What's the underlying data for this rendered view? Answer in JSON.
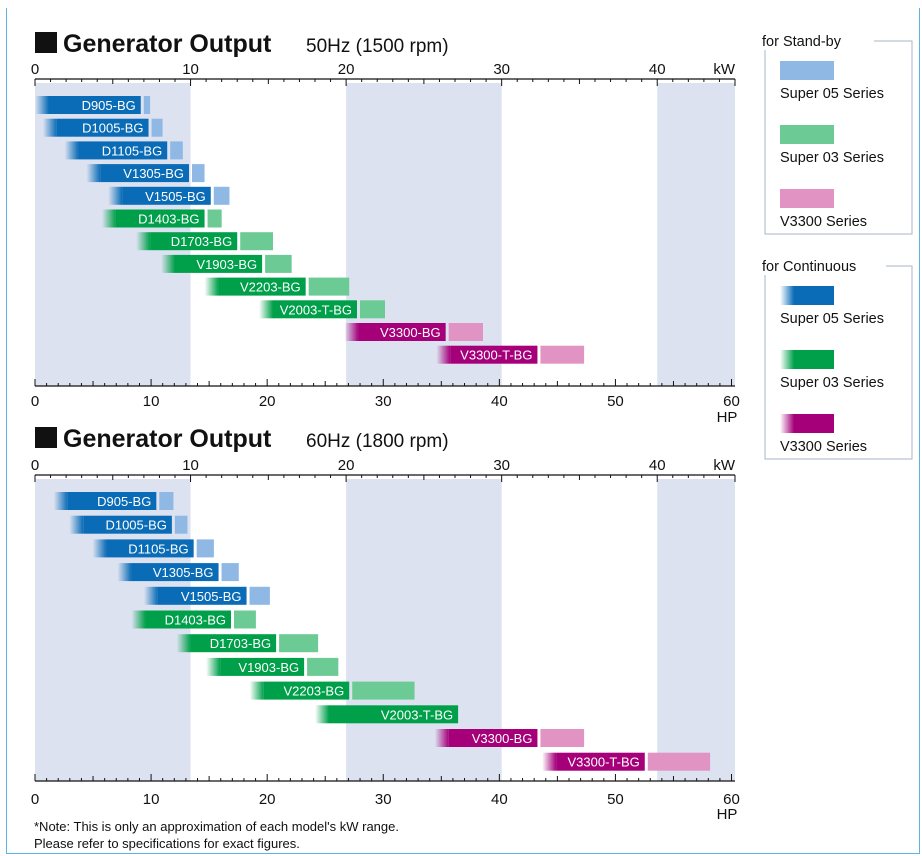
{
  "colors": {
    "band": "#dde2f1",
    "super05_continuous": "#0a6cb6",
    "super05_standby": "#8fb8e4",
    "super03_continuous": "#00a04a",
    "super03_standby": "#6ccb94",
    "v3300_continuous": "#a5007a",
    "v3300_standby": "#e194c3",
    "legend_border": "#aab6c8",
    "frame": "#5ab4e6"
  },
  "legend": {
    "standby": {
      "title": "for Stand-by",
      "items": [
        {
          "label": "Super 05 Series",
          "color_key": "super05_standby"
        },
        {
          "label": "Super 03 Series",
          "color_key": "super03_standby"
        },
        {
          "label": "V3300 Series",
          "color_key": "v3300_standby"
        }
      ]
    },
    "continuous": {
      "title": "for Continuous",
      "items": [
        {
          "label": "Super 05 Series",
          "color_key": "super05_continuous"
        },
        {
          "label": "Super 03 Series",
          "color_key": "super03_continuous"
        },
        {
          "label": "V3300 Series",
          "color_key": "v3300_continuous"
        }
      ]
    }
  },
  "note": {
    "line1": "*Note: This is only an approximation of each model's kW range.",
    "line2": "Please refer to specifications for exact figures."
  },
  "chart_data": [
    {
      "type": "bar",
      "title": "Generator Output",
      "subtitle": "50Hz (1500 rpm)",
      "top_axis": {
        "unit": "kW",
        "range": [
          0,
          45
        ],
        "ticks": [
          0,
          10,
          20,
          30,
          40
        ]
      },
      "bottom_axis": {
        "unit": "HP",
        "range": [
          0,
          60.3
        ],
        "ticks": [
          0,
          10,
          20,
          30,
          40,
          50,
          60
        ]
      },
      "shaded_kw_bands": [
        [
          0,
          10
        ],
        [
          20,
          30
        ],
        [
          40,
          45
        ]
      ],
      "bars": [
        {
          "model": "D905-BG",
          "series": "super05",
          "kw_start": 0,
          "kw_continuous_end": 6.8,
          "kw_standby_end": 7.4
        },
        {
          "model": "D1005-BG",
          "series": "super05",
          "kw_start": 0.5,
          "kw_continuous_end": 7.3,
          "kw_standby_end": 8.2
        },
        {
          "model": "D1105-BG",
          "series": "super05",
          "kw_start": 1.9,
          "kw_continuous_end": 8.5,
          "kw_standby_end": 9.5
        },
        {
          "model": "V1305-BG",
          "series": "super05",
          "kw_start": 3.3,
          "kw_continuous_end": 9.9,
          "kw_standby_end": 10.9
        },
        {
          "model": "V1505-BG",
          "series": "super05",
          "kw_start": 4.7,
          "kw_continuous_end": 11.3,
          "kw_standby_end": 12.5
        },
        {
          "model": "D1403-BG",
          "series": "super03",
          "kw_start": 4.3,
          "kw_continuous_end": 10.9,
          "kw_standby_end": 12.0
        },
        {
          "model": "D1703-BG",
          "series": "super03",
          "kw_start": 6.5,
          "kw_continuous_end": 13.0,
          "kw_standby_end": 15.3
        },
        {
          "model": "V1903-BG",
          "series": "super03",
          "kw_start": 8.1,
          "kw_continuous_end": 14.6,
          "kw_standby_end": 16.5
        },
        {
          "model": "V2203-BG",
          "series": "super03",
          "kw_start": 10.9,
          "kw_continuous_end": 17.4,
          "kw_standby_end": 20.2
        },
        {
          "model": "V2003-T-BG",
          "series": "super03",
          "kw_start": 14.4,
          "kw_continuous_end": 20.7,
          "kw_standby_end": 22.5
        },
        {
          "model": "V3300-BG",
          "series": "v3300",
          "kw_start": 19.9,
          "kw_continuous_end": 26.4,
          "kw_standby_end": 28.8
        },
        {
          "model": "V3300-T-BG",
          "series": "v3300",
          "kw_start": 25.8,
          "kw_continuous_end": 32.3,
          "kw_standby_end": 35.3
        }
      ]
    },
    {
      "type": "bar",
      "title": "Generator Output",
      "subtitle": "60Hz (1800 rpm)",
      "top_axis": {
        "unit": "kW",
        "range": [
          0,
          45
        ],
        "ticks": [
          0,
          10,
          20,
          30,
          40
        ]
      },
      "bottom_axis": {
        "unit": "HP",
        "range": [
          0,
          60.3
        ],
        "ticks": [
          0,
          10,
          20,
          30,
          40,
          50,
          60
        ]
      },
      "shaded_kw_bands": [
        [
          0,
          10
        ],
        [
          20,
          30
        ],
        [
          40,
          45
        ]
      ],
      "bars": [
        {
          "model": "D905-BG",
          "series": "super05",
          "kw_start": 1.2,
          "kw_continuous_end": 7.8,
          "kw_standby_end": 8.9
        },
        {
          "model": "D1005-BG",
          "series": "super05",
          "kw_start": 2.2,
          "kw_continuous_end": 8.8,
          "kw_standby_end": 9.8
        },
        {
          "model": "D1105-BG",
          "series": "super05",
          "kw_start": 3.7,
          "kw_continuous_end": 10.2,
          "kw_standby_end": 11.5
        },
        {
          "model": "V1305-BG",
          "series": "super05",
          "kw_start": 5.3,
          "kw_continuous_end": 11.8,
          "kw_standby_end": 13.1
        },
        {
          "model": "V1505-BG",
          "series": "super05",
          "kw_start": 7.0,
          "kw_continuous_end": 13.6,
          "kw_standby_end": 15.1
        },
        {
          "model": "D1403-BG",
          "series": "super03",
          "kw_start": 6.2,
          "kw_continuous_end": 12.6,
          "kw_standby_end": 14.2
        },
        {
          "model": "D1703-BG",
          "series": "super03",
          "kw_start": 9.1,
          "kw_continuous_end": 15.5,
          "kw_standby_end": 18.2
        },
        {
          "model": "V1903-BG",
          "series": "super03",
          "kw_start": 11.0,
          "kw_continuous_end": 17.3,
          "kw_standby_end": 19.5
        },
        {
          "model": "V2203-BG",
          "series": "super03",
          "kw_start": 13.8,
          "kw_continuous_end": 20.2,
          "kw_standby_end": 24.4
        },
        {
          "model": "V2003-T-BG",
          "series": "super03",
          "kw_start": 18.0,
          "kw_continuous_end": 27.2,
          "kw_standby_end": 27.2
        },
        {
          "model": "V3300-BG",
          "series": "v3300",
          "kw_start": 25.7,
          "kw_continuous_end": 32.3,
          "kw_standby_end": 35.3
        },
        {
          "model": "V3300-T-BG",
          "series": "v3300",
          "kw_start": 32.6,
          "kw_continuous_end": 39.2,
          "kw_standby_end": 43.4
        }
      ]
    }
  ]
}
